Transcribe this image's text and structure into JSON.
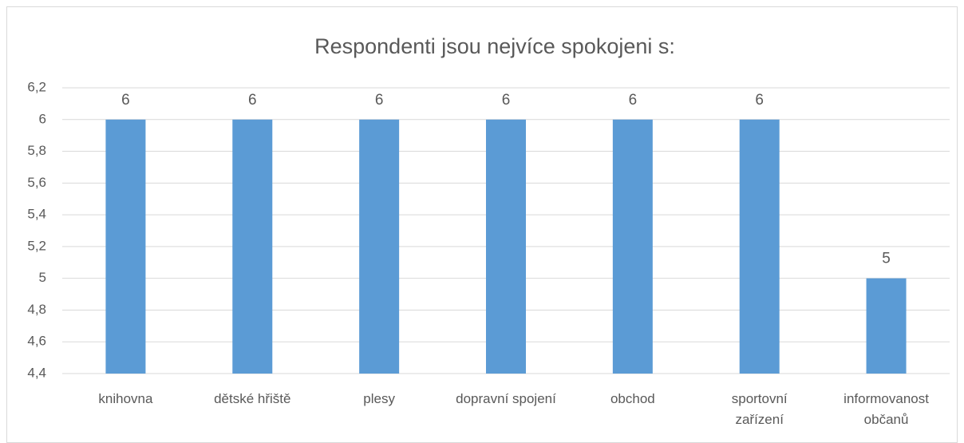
{
  "chart_data": {
    "type": "bar",
    "title": "Respondenti jsou nejvíce spokojeni s:",
    "categories": [
      "knihovna",
      "dětské hřiště",
      "plesy",
      "dopravní spojení",
      "obchod",
      "sportovní zařízení",
      "informovanost občanů"
    ],
    "values": [
      6,
      6,
      6,
      6,
      6,
      6,
      5
    ],
    "color": "#5b9bd5",
    "ylim": [
      4.4,
      6.2
    ],
    "yticks": [
      {
        "value": 4.4,
        "label": "4,4"
      },
      {
        "value": 4.6,
        "label": "4,6"
      },
      {
        "value": 4.8,
        "label": "4,8"
      },
      5,
      {
        "value": 5.2,
        "label": "5,2"
      },
      {
        "value": 5.4,
        "label": "5,4"
      },
      {
        "value": 5.6,
        "label": "5,6"
      },
      {
        "value": 5.8,
        "label": "5,8"
      },
      6,
      {
        "value": 6.2,
        "label": "6,2"
      }
    ],
    "grid": true
  }
}
